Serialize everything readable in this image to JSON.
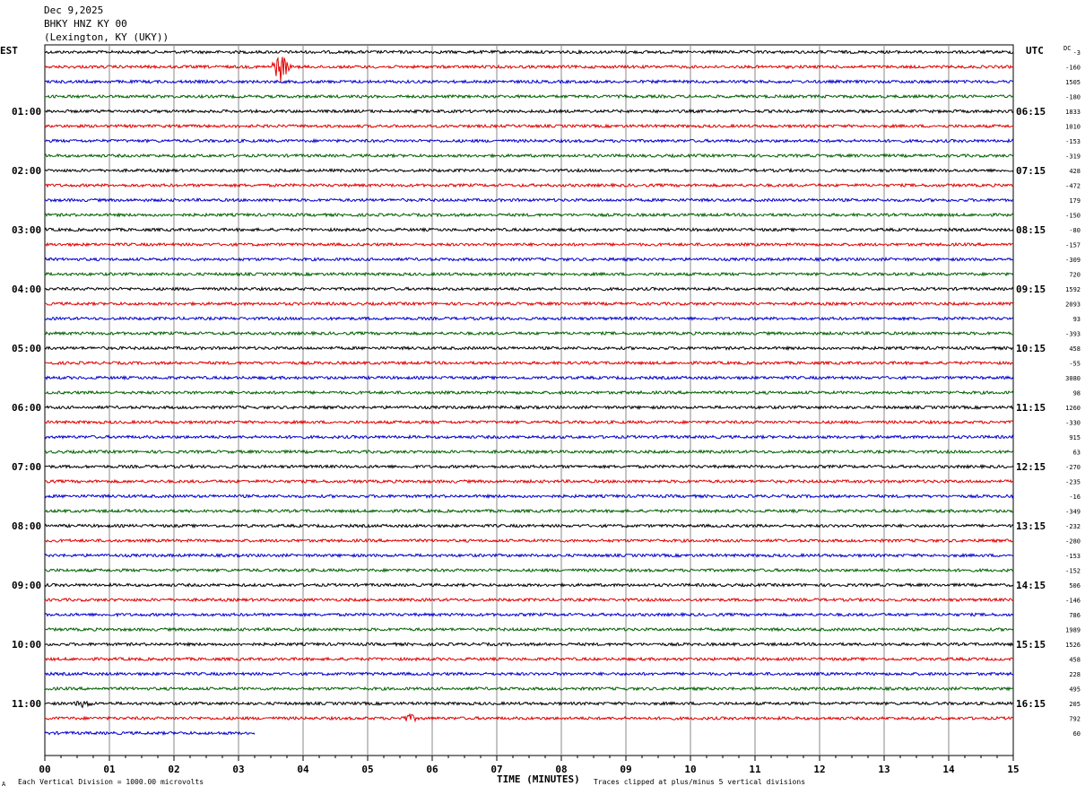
{
  "header": {
    "date": "Dec 9,2025",
    "station": "BHKY HNZ KY 00",
    "location": "(Lexington, KY (UKY))"
  },
  "timezones": {
    "left": "EST",
    "right": "UTC"
  },
  "dc_label": "DC",
  "footer": {
    "scale_note": "Each Vertical Division = 1000.00 microvolts",
    "clip_note": "Traces clipped at plus/minus 5 vertical divisions",
    "corner_mark": "A"
  },
  "colors": {
    "trace_cycle": [
      "#000000",
      "#e00000",
      "#0000cc",
      "#006000"
    ],
    "grid": "#888888"
  },
  "chart_data": {
    "type": "line",
    "subtype": "helicorder",
    "xlabel": "TIME (MINUTES)",
    "x_ticks": [
      "00",
      "01",
      "02",
      "03",
      "04",
      "05",
      "06",
      "07",
      "08",
      "09",
      "10",
      "11",
      "12",
      "13",
      "14",
      "15"
    ],
    "xlim": [
      0,
      15
    ],
    "minutes_per_line": 15,
    "est_hour_labels": [
      "01:00",
      "02:00",
      "03:00",
      "04:00",
      "05:00",
      "06:00",
      "07:00",
      "08:00",
      "09:00",
      "10:00",
      "11:00"
    ],
    "utc_hour_labels": [
      "06:15",
      "07:15",
      "08:15",
      "09:15",
      "10:15",
      "11:15",
      "12:15",
      "13:15",
      "14:15",
      "15:15",
      "16:15"
    ],
    "dc_offsets": [
      "-3",
      "-160",
      "1505",
      "-180",
      "1833",
      "1010",
      "-153",
      "-319",
      "428",
      "-472",
      "179",
      "-150",
      "-80",
      "-157",
      "-309",
      "720",
      "1592",
      "2093",
      "93",
      "-393",
      "458",
      "-55",
      "3080",
      "98",
      "1260",
      "-330",
      "915",
      "63",
      "-270",
      "-235",
      "-16",
      "-349",
      "-232",
      "-280",
      "-153",
      "-152",
      "506",
      "-146",
      "786",
      "1989",
      "1526",
      "458",
      "228",
      "495",
      "205",
      "792",
      "60"
    ],
    "traces": [
      {
        "line": 0,
        "end_minute": 15
      },
      {
        "line": 1,
        "end_minute": 15,
        "event_minute": 3.65,
        "event_amplitude": 5
      },
      {
        "line": 45,
        "end_minute": 15,
        "event_minute": 5.65,
        "event_amplitude": 1
      },
      {
        "line": 44,
        "end_minute": 15,
        "event_minute": 0.6,
        "event_amplitude": 1
      },
      {
        "line": 46,
        "end_minute": 3.25
      }
    ],
    "trace_count": 47,
    "grid": true
  }
}
